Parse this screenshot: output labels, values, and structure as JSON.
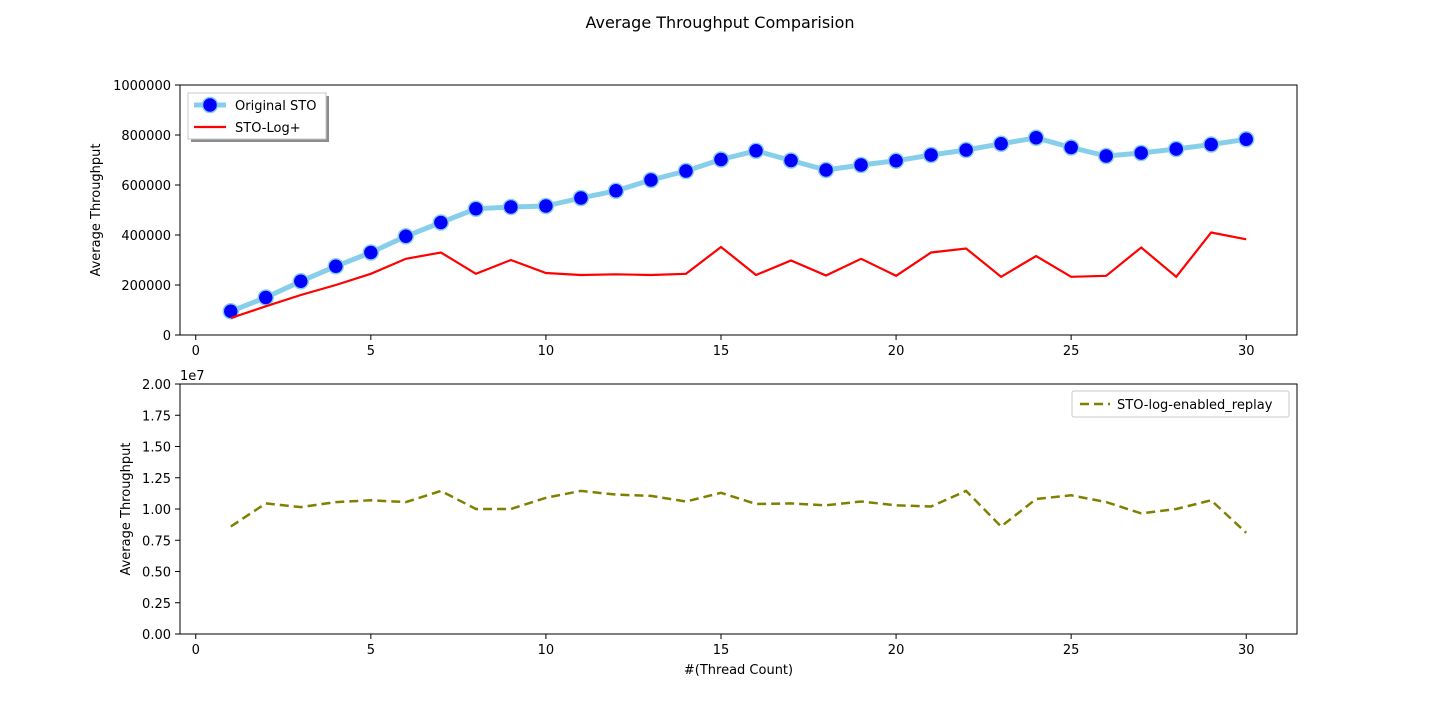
{
  "figure": {
    "title": "Average Throughput Comparision"
  },
  "chart_data": [
    {
      "type": "line",
      "title": "",
      "xlabel": "",
      "ylabel": "Average Throughput",
      "xlim": [
        -0.45,
        31.45
      ],
      "ylim": [
        0,
        1000000
      ],
      "xticks": [
        0,
        5,
        10,
        15,
        20,
        25,
        30
      ],
      "yticks": [
        0,
        200000,
        400000,
        600000,
        800000,
        1000000
      ],
      "x": [
        1,
        2,
        3,
        4,
        5,
        6,
        7,
        8,
        9,
        10,
        11,
        12,
        13,
        14,
        15,
        16,
        17,
        18,
        19,
        20,
        21,
        22,
        23,
        24,
        25,
        26,
        27,
        28,
        29,
        30
      ],
      "legend": "top-left",
      "series": [
        {
          "name": "Original STO",
          "color": "#87ceeb",
          "marker_color": "#0000ff",
          "values": [
            95000,
            150000,
            215000,
            275000,
            330000,
            395000,
            450000,
            505000,
            512000,
            516000,
            548000,
            577000,
            620000,
            656000,
            702000,
            737000,
            698000,
            660000,
            680000,
            697000,
            720000,
            740000,
            765000,
            789000,
            750000,
            716000,
            728000,
            744000,
            762000,
            783000
          ]
        },
        {
          "name": "STO-Log+",
          "color": "#ff0000",
          "values": [
            68000,
            115000,
            160000,
            200000,
            245000,
            305000,
            330000,
            245000,
            300000,
            248000,
            240000,
            243000,
            240000,
            245000,
            352000,
            240000,
            298000,
            238000,
            305000,
            237000,
            330000,
            346000,
            233000,
            316000,
            233000,
            237000,
            350000,
            233000,
            410000,
            383000
          ]
        }
      ]
    },
    {
      "type": "line",
      "title": "",
      "xlabel": "#(Thread Count)",
      "ylabel": "Average Throughput",
      "offset_label": "1e7",
      "xlim": [
        -0.45,
        31.45
      ],
      "ylim": [
        0,
        20000000
      ],
      "xticks": [
        0,
        5,
        10,
        15,
        20,
        25,
        30
      ],
      "yticks": [
        0,
        2500000,
        5000000,
        7500000,
        10000000,
        12500000,
        15000000,
        17500000,
        20000000
      ],
      "ytick_labels": [
        "0.00",
        "0.25",
        "0.50",
        "0.75",
        "1.00",
        "1.25",
        "1.50",
        "1.75",
        "2.00"
      ],
      "x": [
        1,
        2,
        3,
        4,
        5,
        6,
        7,
        8,
        9,
        10,
        11,
        12,
        13,
        14,
        15,
        16,
        17,
        18,
        19,
        20,
        21,
        22,
        23,
        24,
        25,
        26,
        27,
        28,
        29,
        30
      ],
      "legend": "top-right",
      "series": [
        {
          "name": "STO-log-enabled_replay",
          "color": "#808000",
          "values": [
            8600000,
            10450000,
            10150000,
            10550000,
            10700000,
            10550000,
            11450000,
            10000000,
            10000000,
            10900000,
            11450000,
            11150000,
            11050000,
            10600000,
            11300000,
            10400000,
            10450000,
            10300000,
            10600000,
            10300000,
            10200000,
            11450000,
            8600000,
            10800000,
            11100000,
            10550000,
            9650000,
            10000000,
            10700000,
            8100000
          ]
        }
      ]
    }
  ]
}
